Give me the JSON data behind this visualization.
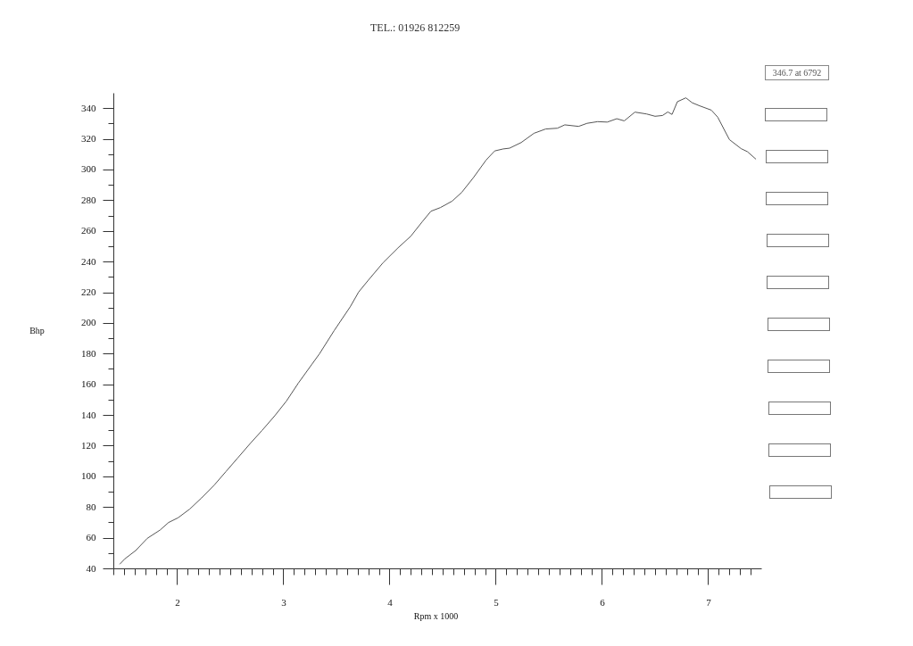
{
  "chart_data": {
    "type": "line",
    "title": "TEL.: 01926 812259",
    "xlabel": "Rpm x 1000",
    "ylabel": "Bhp",
    "annotations": [
      "346.7 at 6792"
    ],
    "x": [
      1.46,
      1.51,
      1.61,
      1.72,
      1.84,
      1.92,
      2.01,
      2.12,
      2.23,
      2.35,
      2.46,
      2.57,
      2.69,
      2.8,
      2.92,
      3.03,
      3.14,
      3.27,
      3.34,
      3.48,
      3.63,
      3.71,
      3.8,
      3.94,
      4.08,
      4.2,
      4.31,
      4.39,
      4.48,
      4.59,
      4.68,
      4.79,
      4.91,
      4.99,
      5.07,
      5.13,
      5.24,
      5.36,
      5.47,
      5.58,
      5.65,
      5.78,
      5.86,
      5.96,
      6.05,
      6.14,
      6.21,
      6.31,
      6.42,
      6.5,
      6.57,
      6.62,
      6.66,
      6.71,
      6.79,
      6.85,
      6.92,
      7.03,
      7.09,
      7.2,
      7.31,
      7.37,
      7.45
    ],
    "series": [
      {
        "color": "#555555",
        "values": [
          42.7,
          46.3,
          51.6,
          59.6,
          65.0,
          69.9,
          73.0,
          78.7,
          85.9,
          94.3,
          103.1,
          111.9,
          121.5,
          129.9,
          139.5,
          149.1,
          160.6,
          173.1,
          179.8,
          195.1,
          210.5,
          220.2,
          227.8,
          239.3,
          248.9,
          256.5,
          266.1,
          272.8,
          275.2,
          279.4,
          285.1,
          294.7,
          306.2,
          312.1,
          313.4,
          313.9,
          317.6,
          323.6,
          326.4,
          326.9,
          329.1,
          328.1,
          330.1,
          331.2,
          330.9,
          333.1,
          331.7,
          337.4,
          336.2,
          334.7,
          335.2,
          337.5,
          335.9,
          344.2,
          346.7,
          343.5,
          341.5,
          338.7,
          334.1,
          319.5,
          313.6,
          311.6,
          306.7
        ]
      }
    ],
    "xlim": [
      1.4,
      7.5
    ],
    "ylim": [
      40,
      350
    ],
    "xticks": [
      {
        "value": 1.4,
        "label": null
      },
      {
        "value": 1.5,
        "label": null
      },
      {
        "value": 1.6,
        "label": null
      },
      {
        "value": 1.7,
        "label": null
      },
      {
        "value": 1.8,
        "label": null
      },
      {
        "value": 1.9,
        "label": null
      },
      2,
      {
        "value": 2.1,
        "label": null
      },
      {
        "value": 2.2,
        "label": null
      },
      {
        "value": 2.3,
        "label": null
      },
      {
        "value": 2.4,
        "label": null
      },
      {
        "value": 2.5,
        "label": null
      },
      {
        "value": 2.6,
        "label": null
      },
      {
        "value": 2.7,
        "label": null
      },
      {
        "value": 2.8,
        "label": null
      },
      {
        "value": 2.9,
        "label": null
      },
      3,
      {
        "value": 3.1,
        "label": null
      },
      {
        "value": 3.2,
        "label": null
      },
      {
        "value": 3.3,
        "label": null
      },
      {
        "value": 3.4,
        "label": null
      },
      {
        "value": 3.5,
        "label": null
      },
      {
        "value": 3.6,
        "label": null
      },
      {
        "value": 3.7,
        "label": null
      },
      {
        "value": 3.8,
        "label": null
      },
      {
        "value": 3.9,
        "label": null
      },
      4,
      {
        "value": 4.1,
        "label": null
      },
      {
        "value": 4.2,
        "label": null
      },
      {
        "value": 4.3,
        "label": null
      },
      {
        "value": 4.4,
        "label": null
      },
      {
        "value": 4.5,
        "label": null
      },
      {
        "value": 4.6,
        "label": null
      },
      {
        "value": 4.7,
        "label": null
      },
      {
        "value": 4.8,
        "label": null
      },
      {
        "value": 4.9,
        "label": null
      },
      5,
      {
        "value": 5.1,
        "label": null
      },
      {
        "value": 5.2,
        "label": null
      },
      {
        "value": 5.3,
        "label": null
      },
      {
        "value": 5.4,
        "label": null
      },
      {
        "value": 5.5,
        "label": null
      },
      {
        "value": 5.6,
        "label": null
      },
      {
        "value": 5.7,
        "label": null
      },
      {
        "value": 5.8,
        "label": null
      },
      {
        "value": 5.9,
        "label": null
      },
      6,
      {
        "value": 6.1,
        "label": null
      },
      {
        "value": 6.2,
        "label": null
      },
      {
        "value": 6.3,
        "label": null
      },
      {
        "value": 6.4,
        "label": null
      },
      {
        "value": 6.5,
        "label": null
      },
      {
        "value": 6.6,
        "label": null
      },
      {
        "value": 6.7,
        "label": null
      },
      {
        "value": 6.8,
        "label": null
      },
      {
        "value": 6.9,
        "label": null
      },
      7,
      {
        "value": 7.1,
        "label": null
      },
      {
        "value": 7.2,
        "label": null
      },
      {
        "value": 7.3,
        "label": null
      },
      {
        "value": 7.4,
        "label": null
      }
    ],
    "yticks": [
      40,
      {
        "value": 50,
        "label": null
      },
      60,
      {
        "value": 70,
        "label": null
      },
      80,
      {
        "value": 90,
        "label": null
      },
      100,
      {
        "value": 110,
        "label": null
      },
      120,
      {
        "value": 130,
        "label": null
      },
      140,
      {
        "value": 150,
        "label": null
      },
      160,
      {
        "value": 170,
        "label": null
      },
      180,
      {
        "value": 190,
        "label": null
      },
      200,
      {
        "value": 210,
        "label": null
      },
      220,
      {
        "value": 230,
        "label": null
      },
      240,
      {
        "value": 250,
        "label": null
      },
      260,
      {
        "value": 270,
        "label": null
      },
      280,
      {
        "value": 290,
        "label": null
      },
      300,
      {
        "value": 310,
        "label": null
      },
      320,
      {
        "value": 330,
        "label": null
      },
      340
    ]
  }
}
